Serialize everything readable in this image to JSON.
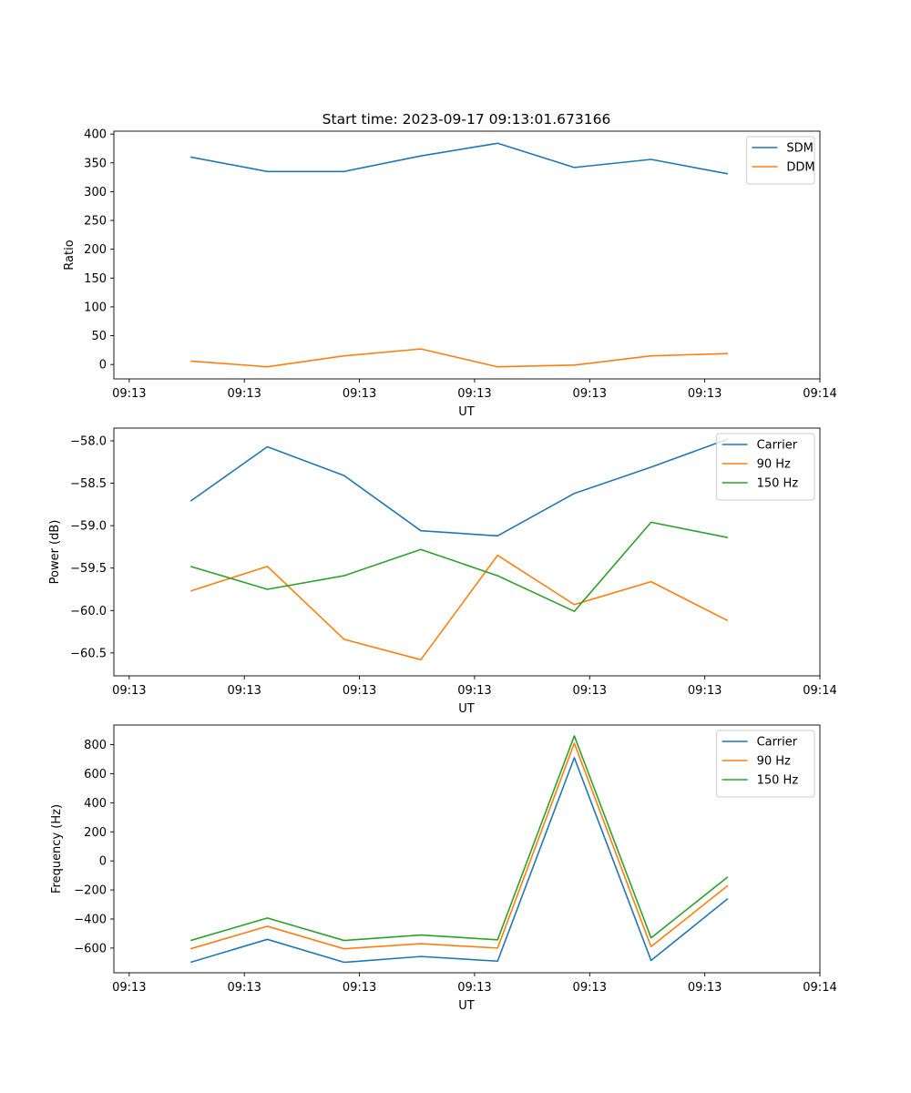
{
  "chart_data": [
    {
      "type": "line",
      "title": "Start time: 2023-09-17 09:13:01.673166",
      "xlabel": "UT",
      "ylabel": "Ratio",
      "x_tick_labels": [
        "09:13",
        "09:13",
        "09:13",
        "09:13",
        "09:13",
        "09:13",
        "09:14"
      ],
      "xlim": [
        0,
        9.2
      ],
      "x": [
        1,
        2,
        3,
        4,
        5,
        6,
        7,
        8
      ],
      "x_ticks": [
        0.2,
        1.7,
        3.2,
        4.7,
        6.2,
        7.7,
        9.2
      ],
      "ylim": [
        -25,
        405
      ],
      "y_ticks": [
        0,
        50,
        100,
        150,
        200,
        250,
        300,
        350,
        400
      ],
      "y_tick_labels": [
        "0",
        "50",
        "100",
        "150",
        "200",
        "250",
        "300",
        "350",
        "400"
      ],
      "legend": "top-right",
      "series": [
        {
          "name": "SDM",
          "color": "#1f77b4",
          "values": [
            360,
            335,
            335,
            362,
            384,
            342,
            356,
            331
          ]
        },
        {
          "name": "DDM",
          "color": "#ff7f0e",
          "values": [
            6,
            -4,
            15,
            27,
            -4,
            -1,
            15,
            19
          ]
        }
      ]
    },
    {
      "type": "line",
      "title": "",
      "xlabel": "UT",
      "ylabel": "Power (dB)",
      "x_tick_labels": [
        "09:13",
        "09:13",
        "09:13",
        "09:13",
        "09:13",
        "09:13",
        "09:14"
      ],
      "xlim": [
        0,
        9.2
      ],
      "x": [
        1,
        2,
        3,
        4,
        5,
        6,
        7,
        8
      ],
      "x_ticks": [
        0.2,
        1.7,
        3.2,
        4.7,
        6.2,
        7.7,
        9.2
      ],
      "ylim": [
        -60.77,
        -57.85
      ],
      "y_ticks": [
        -60.5,
        -60.0,
        -59.5,
        -59.0,
        -58.5,
        -58.0
      ],
      "y_tick_labels": [
        "−60.5",
        "−60.0",
        "−59.5",
        "−59.0",
        "−58.5",
        "−58.0"
      ],
      "legend": "top-right",
      "series": [
        {
          "name": "Carrier",
          "color": "#1f77b4",
          "values": [
            -58.71,
            -58.07,
            -58.41,
            -59.06,
            -59.12,
            -58.62,
            -58.31,
            -57.98
          ]
        },
        {
          "name": "90 Hz",
          "color": "#ff7f0e",
          "values": [
            -59.77,
            -59.48,
            -60.34,
            -60.58,
            -59.35,
            -59.93,
            -59.66,
            -60.12
          ]
        },
        {
          "name": "150 Hz",
          "color": "#2ca02c",
          "values": [
            -59.48,
            -59.75,
            -59.59,
            -59.28,
            -59.59,
            -60.01,
            -58.96,
            -59.14
          ]
        }
      ]
    },
    {
      "type": "line",
      "title": "",
      "xlabel": "UT",
      "ylabel": "Frequency (Hz)",
      "x_tick_labels": [
        "09:13",
        "09:13",
        "09:13",
        "09:13",
        "09:13",
        "09:13",
        "09:14"
      ],
      "xlim": [
        0,
        9.2
      ],
      "x": [
        1,
        2,
        3,
        4,
        5,
        6,
        7,
        8
      ],
      "x_ticks": [
        0.2,
        1.7,
        3.2,
        4.7,
        6.2,
        7.7,
        9.2
      ],
      "ylim": [
        -770,
        935
      ],
      "y_ticks": [
        -600,
        -400,
        -200,
        0,
        200,
        400,
        600,
        800
      ],
      "y_tick_labels": [
        "−600",
        "−400",
        "−200",
        "0",
        "200",
        "400",
        "600",
        "800"
      ],
      "legend": "top-right",
      "series": [
        {
          "name": "Carrier",
          "color": "#1f77b4",
          "values": [
            -698,
            -540,
            -698,
            -658,
            -690,
            710,
            -685,
            -260
          ]
        },
        {
          "name": "90 Hz",
          "color": "#ff7f0e",
          "values": [
            -605,
            -450,
            -605,
            -570,
            -600,
            810,
            -590,
            -170
          ]
        },
        {
          "name": "150 Hz",
          "color": "#2ca02c",
          "values": [
            -548,
            -393,
            -548,
            -510,
            -543,
            860,
            -530,
            -110
          ]
        }
      ]
    }
  ]
}
